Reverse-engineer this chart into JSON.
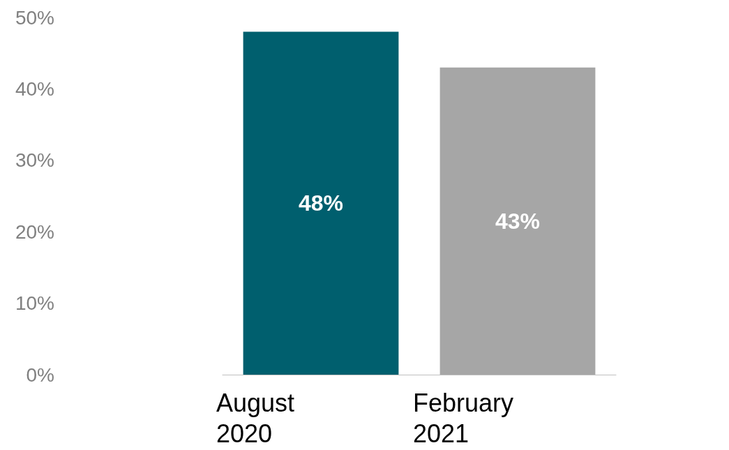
{
  "chart_data": {
    "type": "bar",
    "categories": [
      "August 2020",
      "February 2021"
    ],
    "values": [
      48,
      43
    ],
    "colors": [
      "#005f6e",
      "#a6a6a6"
    ],
    "ylim": [
      0,
      50
    ],
    "yticks": [
      {
        "value": 0,
        "label": "0%"
      },
      {
        "value": 10,
        "label": "10%"
      },
      {
        "value": 20,
        "label": "20%"
      },
      {
        "value": 30,
        "label": "30%"
      },
      {
        "value": 40,
        "label": "40%"
      },
      {
        "value": 50,
        "label": "50%"
      }
    ],
    "value_labels": [
      "48%",
      "43%"
    ],
    "grid": false
  }
}
